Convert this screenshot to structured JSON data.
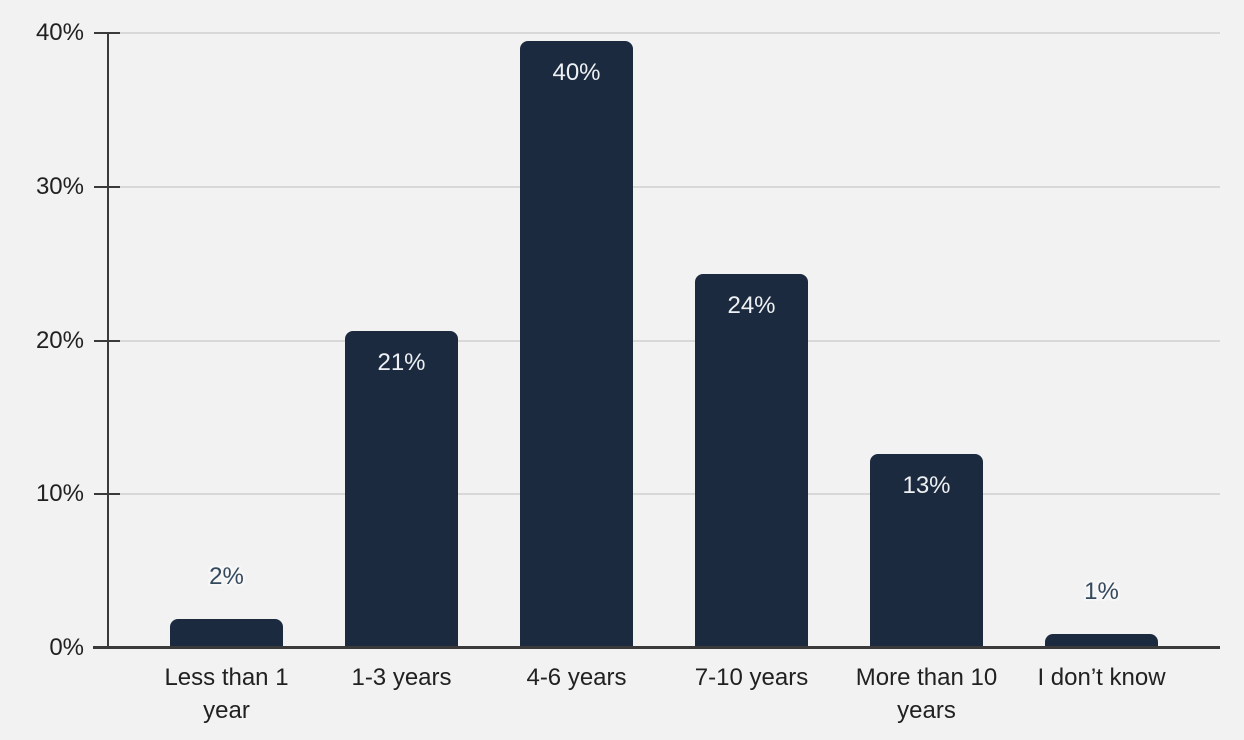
{
  "chart_data": {
    "type": "bar",
    "title": "",
    "xlabel": "",
    "ylabel": "",
    "categories": [
      "Less than 1 year",
      "1-3 years",
      "4-6 years",
      "7-10 years",
      "More than 10 years",
      "I don’t know"
    ],
    "values": [
      2,
      21,
      40,
      24,
      13,
      1
    ],
    "value_labels": [
      "2%",
      "21%",
      "40%",
      "24%",
      "13%",
      "1%"
    ],
    "bar_heights_pct": [
      1.9,
      20.6,
      39.5,
      24.3,
      12.6,
      0.9
    ],
    "label_inside_bar": [
      false,
      true,
      true,
      true,
      true,
      false
    ],
    "ylim": [
      0,
      40
    ],
    "ytick_values": [
      0,
      10,
      20,
      30,
      40
    ],
    "ytick_labels": [
      "0%",
      "10%",
      "20%",
      "30%",
      "40%"
    ],
    "grid": true,
    "legend": false,
    "colors": {
      "background": "#f2f2f2",
      "bar": "#1b2a3e",
      "gridline": "#d8d8d8",
      "axis": "#3a3a3a",
      "tick_text": "#212121",
      "category_text": "#212121",
      "label_inside": "#eef1f4",
      "label_outside": "#34495c",
      "label_outside_halo": "#f7f7f7"
    }
  }
}
